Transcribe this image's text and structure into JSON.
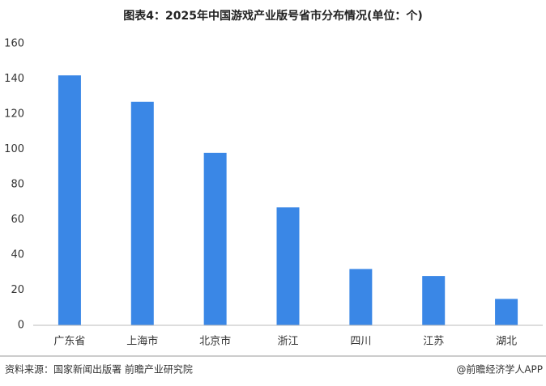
{
  "chart_data": {
    "type": "bar",
    "title": "图表4：2025年中国游戏产业版号省市分布情况(单位：个)",
    "categories": [
      "广东省",
      "上海市",
      "北京市",
      "浙江",
      "四川",
      "江苏",
      "湖北"
    ],
    "values": [
      142,
      127,
      98,
      67,
      32,
      28,
      15
    ],
    "color": "#3a87e6",
    "ylim": [
      0,
      160
    ],
    "yticks": [
      0,
      20,
      40,
      60,
      80,
      100,
      120,
      140,
      160
    ],
    "grid": false,
    "source": "资料来源：国家新闻出版署 前瞻产业研究院",
    "credit": "@前瞻经济学人APP"
  }
}
